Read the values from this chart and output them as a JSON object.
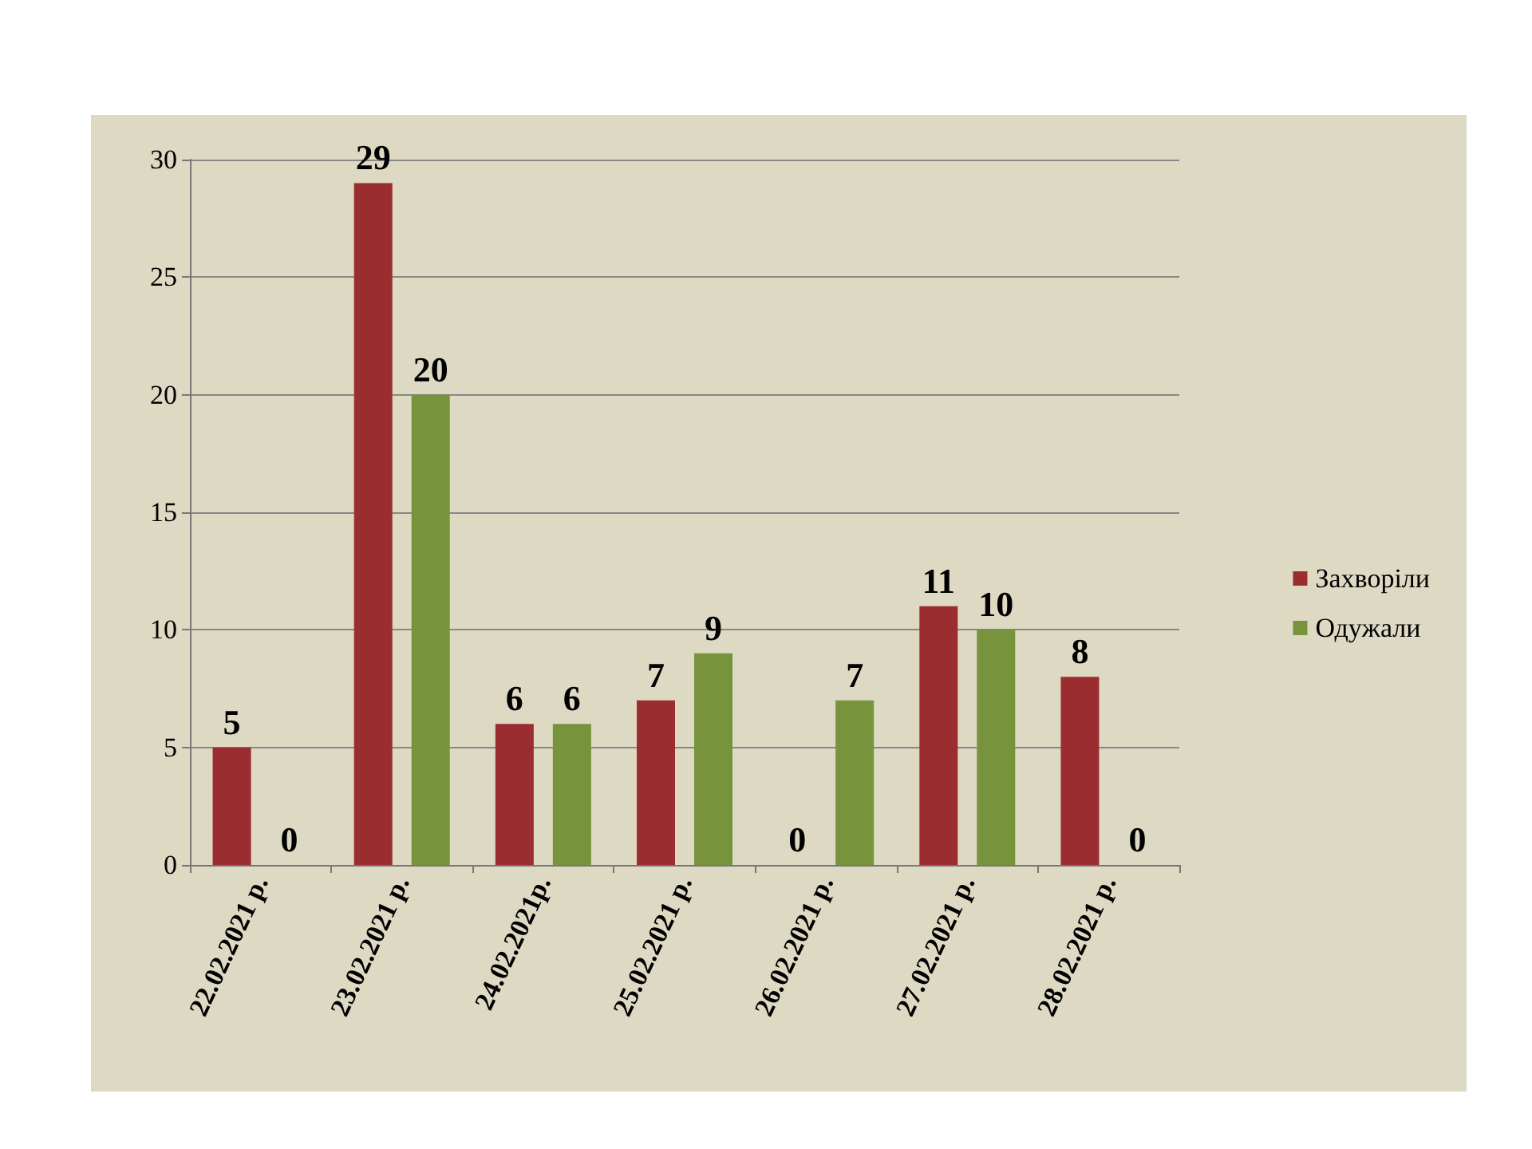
{
  "chart_data": {
    "type": "bar",
    "categories": [
      "22.02.2021 р.",
      "23.02.2021 р.",
      "24.02.2021р.",
      "25.02.2021 р.",
      "26.02.2021 р.",
      "27.02.2021 р.",
      "28.02.2021 р."
    ],
    "series": [
      {
        "name": "Захворіли",
        "color": "#9b2d30",
        "values": [
          5,
          29,
          6,
          7,
          0,
          11,
          8
        ]
      },
      {
        "name": "Одужали",
        "color": "#77933c",
        "values": [
          0,
          20,
          6,
          9,
          7,
          10,
          0
        ]
      }
    ],
    "ylim": [
      0,
      30
    ],
    "yticks": [
      0,
      5,
      10,
      15,
      20,
      25,
      30
    ],
    "grid": "y",
    "legend": "right",
    "data_labels": true
  }
}
